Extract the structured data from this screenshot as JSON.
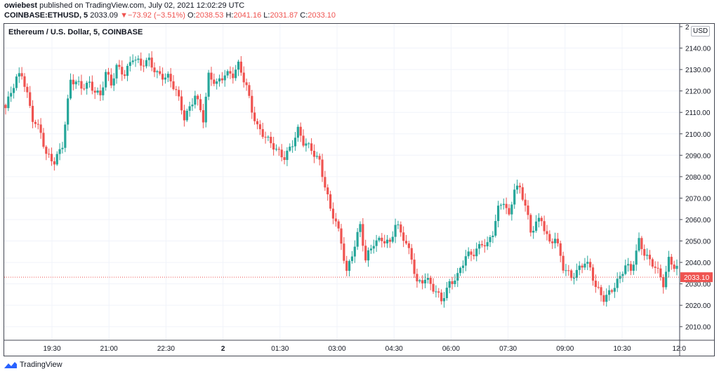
{
  "header": {
    "publisher_user": "owiebest",
    "publisher_text": "published on TradingView.com, July 02, 2021 12:02:29 UTC",
    "symbol": "COINBASE:ETHUSD, 5",
    "last": "2033.09",
    "change_arrow": "▼",
    "change": "−73.92 (−3.51%)",
    "o_label": "O:",
    "o_value": "2038.53",
    "h_label": "H:",
    "h_value": "2041.16",
    "l_label": "L:",
    "l_value": "2031.87",
    "c_label": "C:",
    "c_value": "2033.10"
  },
  "currency_button": "USD",
  "footer": {
    "brand": "TradingView",
    "icon": "tradingview-logo-icon"
  },
  "colors": {
    "up": "#26a69a",
    "down": "#ef5350",
    "grid": "#f0f3fa",
    "axis": "#434651"
  },
  "chart_data": {
    "type": "candlestick",
    "title": "Ethereum / U.S. Dollar, 5, COINBASE",
    "x_tick_labels": [
      "19:30",
      "21:00",
      "22:30",
      "2",
      "01:30",
      "03:00",
      "04:30",
      "06:00",
      "07:30",
      "09:00",
      "10:30",
      "12:0"
    ],
    "y_tick_labels": [
      "2010.00",
      "2020.00",
      "2030.00",
      "2040.00",
      "2050.00",
      "2060.00",
      "2070.00",
      "2080.00",
      "2090.00",
      "2100.00",
      "2110.00",
      "2120.00",
      "2130.00",
      "2140.00",
      "2"
    ],
    "ylim": [
      2005,
      2150
    ],
    "last_price_label": "2033.10",
    "last_price": 2033.1,
    "grid": true,
    "close_path": [
      [
        0,
        2112
      ],
      [
        4,
        2125
      ],
      [
        6,
        2128
      ],
      [
        8,
        2119
      ],
      [
        10,
        2108
      ],
      [
        13,
        2100
      ],
      [
        15,
        2089
      ],
      [
        18,
        2087
      ],
      [
        21,
        2096
      ],
      [
        24,
        2125
      ],
      [
        28,
        2121
      ],
      [
        31,
        2124
      ],
      [
        35,
        2118
      ],
      [
        37,
        2128
      ],
      [
        39,
        2122
      ],
      [
        41,
        2131
      ],
      [
        44,
        2129
      ],
      [
        47,
        2136
      ],
      [
        50,
        2131
      ],
      [
        53,
        2134
      ],
      [
        56,
        2129
      ],
      [
        60,
        2126
      ],
      [
        63,
        2119
      ],
      [
        66,
        2108
      ],
      [
        68,
        2113
      ],
      [
        70,
        2119
      ],
      [
        73,
        2106
      ],
      [
        75,
        2126
      ],
      [
        78,
        2124
      ],
      [
        81,
        2129
      ],
      [
        84,
        2127
      ],
      [
        86,
        2131
      ],
      [
        89,
        2122
      ],
      [
        91,
        2112
      ],
      [
        93,
        2104
      ],
      [
        95,
        2100
      ],
      [
        97,
        2096
      ],
      [
        100,
        2092
      ],
      [
        103,
        2090
      ],
      [
        106,
        2096
      ],
      [
        108,
        2101
      ],
      [
        110,
        2095
      ],
      [
        113,
        2093
      ],
      [
        116,
        2088
      ],
      [
        118,
        2076
      ],
      [
        120,
        2064
      ],
      [
        122,
        2058
      ],
      [
        124,
        2049
      ],
      [
        126,
        2036
      ],
      [
        128,
        2045
      ],
      [
        131,
        2057
      ],
      [
        133,
        2040
      ],
      [
        136,
        2049
      ],
      [
        139,
        2052
      ],
      [
        142,
        2049
      ],
      [
        144,
        2057
      ],
      [
        147,
        2051
      ],
      [
        150,
        2043
      ],
      [
        152,
        2031
      ],
      [
        155,
        2032
      ],
      [
        158,
        2027
      ],
      [
        161,
        2023
      ],
      [
        164,
        2031
      ],
      [
        167,
        2033
      ],
      [
        170,
        2042
      ],
      [
        173,
        2045
      ],
      [
        176,
        2050
      ],
      [
        178,
        2048
      ],
      [
        180,
        2053
      ],
      [
        182,
        2064
      ],
      [
        184,
        2069
      ],
      [
        186,
        2062
      ],
      [
        188,
        2076
      ],
      [
        190,
        2074
      ],
      [
        192,
        2066
      ],
      [
        194,
        2053
      ],
      [
        196,
        2059
      ],
      [
        198,
        2061
      ],
      [
        201,
        2049
      ],
      [
        203,
        2051
      ],
      [
        206,
        2037
      ],
      [
        209,
        2034
      ],
      [
        212,
        2038
      ],
      [
        214,
        2040
      ],
      [
        216,
        2036
      ],
      [
        218,
        2028
      ],
      [
        221,
        2024
      ],
      [
        224,
        2028
      ],
      [
        227,
        2032
      ],
      [
        229,
        2038
      ],
      [
        231,
        2036
      ],
      [
        234,
        2051
      ],
      [
        236,
        2045
      ],
      [
        238,
        2040
      ],
      [
        240,
        2037
      ],
      [
        243,
        2030
      ],
      [
        245,
        2042
      ],
      [
        248,
        2038
      ]
    ]
  }
}
